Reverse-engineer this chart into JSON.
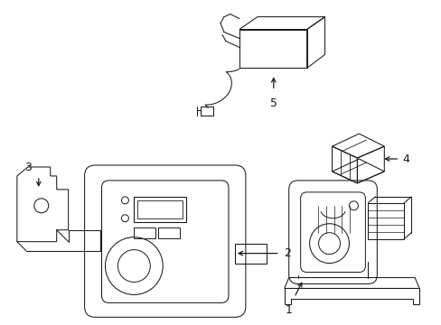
{
  "background_color": "#ffffff",
  "line_color": "#1a1a1a",
  "fig_width": 4.89,
  "fig_height": 3.6,
  "dpi": 100,
  "border_color": "#cccccc",
  "label_fontsize": 9,
  "lw": 0.75,
  "components": {
    "comp1_label": "1",
    "comp2_label": "2",
    "comp3_label": "3",
    "comp4_label": "4",
    "comp5_label": "5"
  }
}
